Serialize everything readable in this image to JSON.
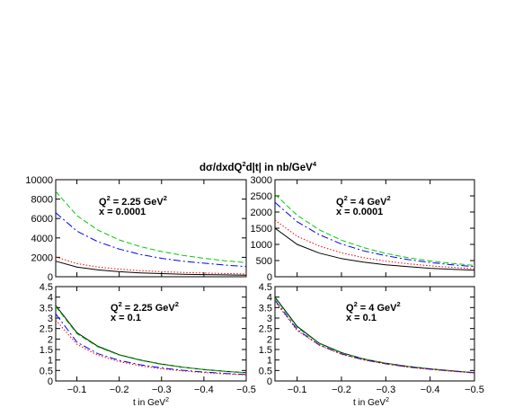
{
  "figure": {
    "title_main": "dσ/dxdQ",
    "title_sup1": "2",
    "title_mid": "d|t| in nb/GeV",
    "title_sup2": "4",
    "xlabel_main": "t in GeV",
    "xlabel_sup": "2"
  },
  "chart_data": [
    {
      "type": "line",
      "panel": "top-left",
      "annotation": {
        "q2_main": "Q",
        "q2_sup": "2",
        "q2_rest": " = 2.25 GeV",
        "q2_sup2": "2",
        "x_line": "x = 0.0001"
      },
      "xlim": [
        -0.05,
        -0.5
      ],
      "ylim": [
        0,
        10000
      ],
      "yticks": [
        0,
        2000,
        4000,
        6000,
        8000,
        10000
      ],
      "ytick_labels": [
        "0",
        "2000",
        "4000",
        "6000",
        "8000",
        "10000"
      ],
      "xticks": [
        -0.1,
        -0.2,
        -0.3,
        -0.4,
        -0.5
      ],
      "xtick_labels": [
        "",
        "",
        "",
        "",
        ""
      ],
      "series": [
        {
          "style": "dashed",
          "color": "#00cc00",
          "x": [
            -0.05,
            -0.1,
            -0.15,
            -0.2,
            -0.25,
            -0.3,
            -0.35,
            -0.4,
            -0.45,
            -0.5
          ],
          "y": [
            8800,
            6300,
            4800,
            3800,
            3100,
            2600,
            2200,
            1900,
            1650,
            1450
          ]
        },
        {
          "style": "dashdot",
          "color": "#0000ff",
          "x": [
            -0.05,
            -0.1,
            -0.15,
            -0.2,
            -0.25,
            -0.3,
            -0.35,
            -0.4,
            -0.45,
            -0.5
          ],
          "y": [
            6600,
            4700,
            3600,
            2850,
            2300,
            1900,
            1600,
            1400,
            1200,
            1050
          ]
        },
        {
          "style": "dotted",
          "color": "#ff0000",
          "x": [
            -0.05,
            -0.1,
            -0.15,
            -0.2,
            -0.25,
            -0.3,
            -0.35,
            -0.4,
            -0.45,
            -0.5
          ],
          "y": [
            2050,
            1350,
            1000,
            780,
            630,
            520,
            440,
            380,
            330,
            290
          ]
        },
        {
          "style": "solid",
          "color": "#000000",
          "x": [
            -0.05,
            -0.1,
            -0.15,
            -0.2,
            -0.25,
            -0.3,
            -0.35,
            -0.4,
            -0.45,
            -0.5
          ],
          "y": [
            1600,
            1000,
            700,
            520,
            400,
            320,
            260,
            220,
            190,
            160
          ]
        }
      ]
    },
    {
      "type": "line",
      "panel": "top-right",
      "annotation": {
        "q2_main": "Q",
        "q2_sup": "2",
        "q2_rest": " = 4 GeV",
        "q2_sup2": "2",
        "x_line": "x = 0.0001"
      },
      "xlim": [
        -0.05,
        -0.5
      ],
      "ylim": [
        0,
        3000
      ],
      "yticks": [
        0,
        500,
        1000,
        1500,
        2000,
        2500,
        3000
      ],
      "ytick_labels": [
        "0",
        "500",
        "1000",
        "1500",
        "2000",
        "2500",
        "3000"
      ],
      "xticks": [
        -0.1,
        -0.2,
        -0.3,
        -0.4,
        -0.5
      ],
      "xtick_labels": [
        "",
        "",
        "",
        "",
        ""
      ],
      "series": [
        {
          "style": "dashed",
          "color": "#00cc00",
          "x": [
            -0.05,
            -0.1,
            -0.15,
            -0.2,
            -0.25,
            -0.3,
            -0.35,
            -0.4,
            -0.45,
            -0.5
          ],
          "y": [
            2550,
            1900,
            1450,
            1130,
            900,
            720,
            590,
            490,
            410,
            350
          ]
        },
        {
          "style": "dashdot",
          "color": "#0000ff",
          "x": [
            -0.05,
            -0.1,
            -0.15,
            -0.2,
            -0.25,
            -0.3,
            -0.35,
            -0.4,
            -0.45,
            -0.5
          ],
          "y": [
            2300,
            1700,
            1300,
            1010,
            800,
            650,
            530,
            440,
            370,
            310
          ]
        },
        {
          "style": "dotted",
          "color": "#ff0000",
          "x": [
            -0.05,
            -0.1,
            -0.15,
            -0.2,
            -0.25,
            -0.3,
            -0.35,
            -0.4,
            -0.45,
            -0.5
          ],
          "y": [
            1750,
            1250,
            950,
            740,
            590,
            480,
            400,
            340,
            290,
            250
          ]
        },
        {
          "style": "solid",
          "color": "#000000",
          "x": [
            -0.05,
            -0.1,
            -0.15,
            -0.2,
            -0.25,
            -0.3,
            -0.35,
            -0.4,
            -0.45,
            -0.5
          ],
          "y": [
            1500,
            1000,
            730,
            560,
            450,
            370,
            310,
            260,
            230,
            200
          ]
        }
      ]
    },
    {
      "type": "line",
      "panel": "bottom-left",
      "annotation": {
        "q2_main": "Q",
        "q2_sup": "2",
        "q2_rest": " = 2.25 GeV",
        "q2_sup2": "2",
        "x_line": "x = 0.1"
      },
      "xlim": [
        -0.05,
        -0.5
      ],
      "ylim": [
        0,
        4.5
      ],
      "yticks": [
        0,
        0.5,
        1,
        1.5,
        2,
        2.5,
        3,
        3.5,
        4,
        4.5
      ],
      "ytick_labels": [
        "0",
        "0.5",
        "1",
        "1.5",
        "2",
        "2.5",
        "3",
        "3.5",
        "4",
        "4.5"
      ],
      "xticks": [
        -0.1,
        -0.2,
        -0.3,
        -0.4,
        -0.5
      ],
      "xtick_labels": [
        "−0.1",
        "−0.2",
        "−0.3",
        "−0.4",
        "−0.5"
      ],
      "series": [
        {
          "style": "solid",
          "color": "#000000",
          "x": [
            -0.05,
            -0.1,
            -0.15,
            -0.2,
            -0.25,
            -0.3,
            -0.35,
            -0.4,
            -0.45,
            -0.5
          ],
          "y": [
            3.6,
            2.3,
            1.65,
            1.25,
            1.0,
            0.8,
            0.66,
            0.55,
            0.46,
            0.4
          ]
        },
        {
          "style": "dashed",
          "color": "#00cc00",
          "x": [
            -0.05,
            -0.1,
            -0.15,
            -0.2,
            -0.25,
            -0.3,
            -0.35,
            -0.4,
            -0.45,
            -0.5
          ],
          "y": [
            3.55,
            2.25,
            1.62,
            1.23,
            0.98,
            0.79,
            0.65,
            0.54,
            0.45,
            0.39
          ]
        },
        {
          "style": "dashdot",
          "color": "#0000ff",
          "x": [
            -0.05,
            -0.1,
            -0.15,
            -0.2,
            -0.25,
            -0.3,
            -0.35,
            -0.4,
            -0.45,
            -0.5
          ],
          "y": [
            3.2,
            1.85,
            1.3,
            0.98,
            0.77,
            0.62,
            0.51,
            0.43,
            0.36,
            0.31
          ]
        },
        {
          "style": "dotted",
          "color": "#ff0000",
          "x": [
            -0.05,
            -0.1,
            -0.15,
            -0.2,
            -0.25,
            -0.3,
            -0.35,
            -0.4,
            -0.45,
            -0.5
          ],
          "y": [
            2.9,
            1.75,
            1.22,
            0.92,
            0.72,
            0.58,
            0.48,
            0.4,
            0.34,
            0.29
          ]
        }
      ]
    },
    {
      "type": "line",
      "panel": "bottom-right",
      "annotation": {
        "q2_main": "Q",
        "q2_sup": "2",
        "q2_rest": " = 4 GeV",
        "q2_sup2": "2",
        "x_line": "x = 0.1"
      },
      "xlim": [
        -0.05,
        -0.5
      ],
      "ylim": [
        0,
        4.5
      ],
      "yticks": [
        0,
        0.5,
        1,
        1.5,
        2,
        2.5,
        3,
        3.5,
        4,
        4.5
      ],
      "ytick_labels": [
        "0",
        "0.5",
        "1",
        "1.5",
        "2",
        "2.5",
        "3",
        "3.5",
        "4",
        "4.5"
      ],
      "xticks": [
        -0.1,
        -0.2,
        -0.3,
        -0.4,
        -0.5
      ],
      "xtick_labels": [
        "−0.1",
        "−0.2",
        "−0.3",
        "−0.4",
        "−0.5"
      ],
      "series": [
        {
          "style": "solid",
          "color": "#000000",
          "x": [
            -0.05,
            -0.1,
            -0.15,
            -0.2,
            -0.25,
            -0.3,
            -0.35,
            -0.4,
            -0.45,
            -0.5
          ],
          "y": [
            4.0,
            2.6,
            1.8,
            1.35,
            1.05,
            0.85,
            0.7,
            0.58,
            0.48,
            0.4
          ]
        },
        {
          "style": "dashed",
          "color": "#00cc00",
          "x": [
            -0.05,
            -0.1,
            -0.15,
            -0.2,
            -0.25,
            -0.3,
            -0.35,
            -0.4,
            -0.45,
            -0.5
          ],
          "y": [
            3.95,
            2.55,
            1.78,
            1.33,
            1.04,
            0.84,
            0.69,
            0.57,
            0.48,
            0.4
          ]
        },
        {
          "style": "dashdot",
          "color": "#0000ff",
          "x": [
            -0.05,
            -0.1,
            -0.15,
            -0.2,
            -0.25,
            -0.3,
            -0.35,
            -0.4,
            -0.45,
            -0.5
          ],
          "y": [
            3.85,
            2.45,
            1.72,
            1.29,
            1.01,
            0.82,
            0.67,
            0.56,
            0.47,
            0.39
          ]
        },
        {
          "style": "dotted",
          "color": "#ff0000",
          "x": [
            -0.05,
            -0.1,
            -0.15,
            -0.2,
            -0.25,
            -0.3,
            -0.35,
            -0.4,
            -0.45,
            -0.5
          ],
          "y": [
            3.8,
            2.4,
            1.7,
            1.27,
            1.0,
            0.81,
            0.66,
            0.55,
            0.46,
            0.38
          ]
        }
      ]
    }
  ]
}
